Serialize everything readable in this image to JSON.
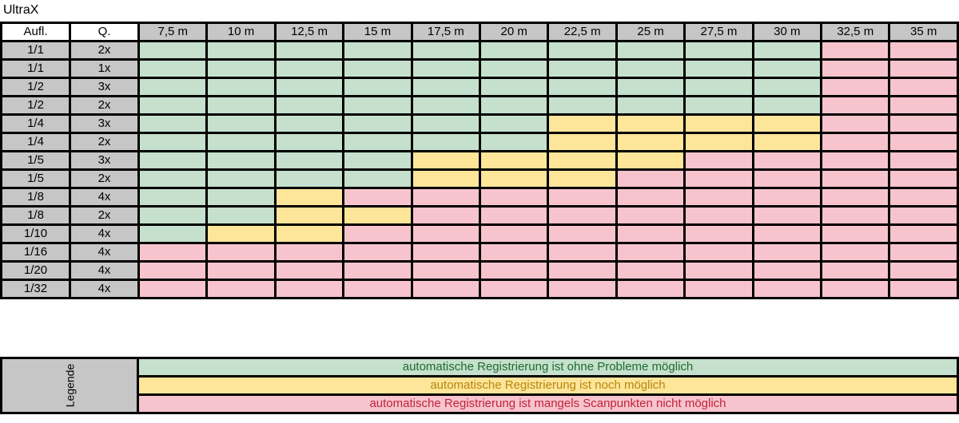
{
  "title": "UltraX",
  "headers": {
    "aufl": "Aufl.",
    "q": "Q.",
    "ranges": [
      "7,5 m",
      "10 m",
      "12,5 m",
      "15 m",
      "17,5 m",
      "20 m",
      "22,5 m",
      "25 m",
      "27,5 m",
      "30 m",
      "32,5 m",
      "35 m"
    ]
  },
  "rows": [
    {
      "aufl": "1/1",
      "q": "2x",
      "cells": [
        "g",
        "g",
        "g",
        "g",
        "g",
        "g",
        "g",
        "g",
        "g",
        "g",
        "r",
        "r"
      ]
    },
    {
      "aufl": "1/1",
      "q": "1x",
      "cells": [
        "g",
        "g",
        "g",
        "g",
        "g",
        "g",
        "g",
        "g",
        "g",
        "g",
        "r",
        "r"
      ]
    },
    {
      "aufl": "1/2",
      "q": "3x",
      "cells": [
        "g",
        "g",
        "g",
        "g",
        "g",
        "g",
        "g",
        "g",
        "g",
        "g",
        "r",
        "r"
      ]
    },
    {
      "aufl": "1/2",
      "q": "2x",
      "cells": [
        "g",
        "g",
        "g",
        "g",
        "g",
        "g",
        "g",
        "g",
        "g",
        "g",
        "r",
        "r"
      ]
    },
    {
      "aufl": "1/4",
      "q": "3x",
      "cells": [
        "g",
        "g",
        "g",
        "g",
        "g",
        "g",
        "y",
        "y",
        "y",
        "y",
        "r",
        "r"
      ]
    },
    {
      "aufl": "1/4",
      "q": "2x",
      "cells": [
        "g",
        "g",
        "g",
        "g",
        "g",
        "g",
        "y",
        "y",
        "y",
        "y",
        "r",
        "r"
      ]
    },
    {
      "aufl": "1/5",
      "q": "3x",
      "cells": [
        "g",
        "g",
        "g",
        "g",
        "y",
        "y",
        "y",
        "y",
        "r",
        "r",
        "r",
        "r"
      ]
    },
    {
      "aufl": "1/5",
      "q": "2x",
      "cells": [
        "g",
        "g",
        "g",
        "g",
        "y",
        "y",
        "y",
        "r",
        "r",
        "r",
        "r",
        "r"
      ]
    },
    {
      "aufl": "1/8",
      "q": "4x",
      "cells": [
        "g",
        "g",
        "y",
        "r",
        "r",
        "r",
        "r",
        "r",
        "r",
        "r",
        "r",
        "r"
      ]
    },
    {
      "aufl": "1/8",
      "q": "2x",
      "cells": [
        "g",
        "g",
        "y",
        "y",
        "r",
        "r",
        "r",
        "r",
        "r",
        "r",
        "r",
        "r"
      ]
    },
    {
      "aufl": "1/10",
      "q": "4x",
      "cells": [
        "g",
        "y",
        "y",
        "r",
        "r",
        "r",
        "r",
        "r",
        "r",
        "r",
        "r",
        "r"
      ]
    },
    {
      "aufl": "1/16",
      "q": "4x",
      "cells": [
        "r",
        "r",
        "r",
        "r",
        "r",
        "r",
        "r",
        "r",
        "r",
        "r",
        "r",
        "r"
      ]
    },
    {
      "aufl": "1/20",
      "q": "4x",
      "cells": [
        "r",
        "r",
        "r",
        "r",
        "r",
        "r",
        "r",
        "r",
        "r",
        "r",
        "r",
        "r"
      ]
    },
    {
      "aufl": "1/32",
      "q": "4x",
      "cells": [
        "r",
        "r",
        "r",
        "r",
        "r",
        "r",
        "r",
        "r",
        "r",
        "r",
        "r",
        "r"
      ]
    }
  ],
  "legend": {
    "label": "Legende",
    "green": "automatische Registrierung ist ohne Probleme möglich",
    "yellow": "automatische Registrierung ist noch möglich",
    "red": "automatische Registrierung ist mangels Scanpunkten nicht möglich"
  },
  "colors": {
    "green": "#c5e0cd",
    "yellow": "#fde59a",
    "red": "#f7c4cd",
    "header_gray": "#c6c6c6"
  }
}
